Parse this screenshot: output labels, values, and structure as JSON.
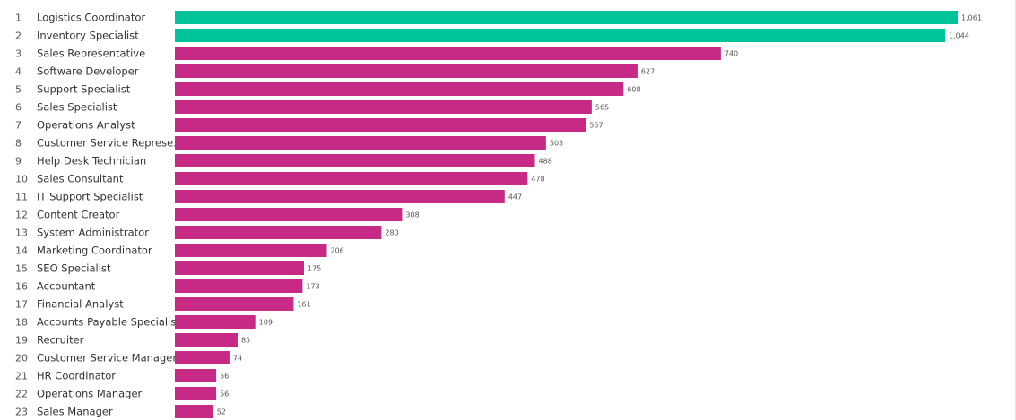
{
  "chart_data": {
    "type": "bar",
    "orientation": "horizontal",
    "highlight_color": "#00c39b",
    "bar_color": "#c62a85",
    "highlight_top_n": 2,
    "xlim": [
      0,
      1061
    ],
    "grid": false,
    "legend": "none",
    "ranks": [
      "1",
      "2",
      "3",
      "4",
      "5",
      "6",
      "7",
      "8",
      "9",
      "10",
      "11",
      "12",
      "13",
      "14",
      "15",
      "16",
      "17",
      "18",
      "19",
      "20",
      "21",
      "22",
      "23"
    ],
    "categories": [
      "Logistics Coordinator",
      "Inventory Specialist",
      "Sales Representative",
      "Software Developer",
      "Support Specialist",
      "Sales Specialist",
      "Operations Analyst",
      "Customer Service Represe..",
      "Help Desk Technician",
      "Sales Consultant",
      "IT Support Specialist",
      "Content Creator",
      "System Administrator",
      "Marketing Coordinator",
      "SEO Specialist",
      "Accountant",
      "Financial Analyst",
      "Accounts Payable Specialist",
      "Recruiter",
      "Customer Service Manager",
      "HR Coordinator",
      "Operations Manager",
      "Sales Manager"
    ],
    "values": [
      1061,
      1044,
      740,
      627,
      608,
      565,
      557,
      503,
      488,
      478,
      447,
      308,
      280,
      206,
      175,
      173,
      161,
      109,
      85,
      74,
      56,
      56,
      52
    ],
    "value_labels": [
      "1,061",
      "1,044",
      "740",
      "627",
      "608",
      "565",
      "557",
      "503",
      "488",
      "478",
      "447",
      "308",
      "280",
      "206",
      "175",
      "173",
      "161",
      "109",
      "85",
      "74",
      "56",
      "56",
      "52"
    ]
  }
}
